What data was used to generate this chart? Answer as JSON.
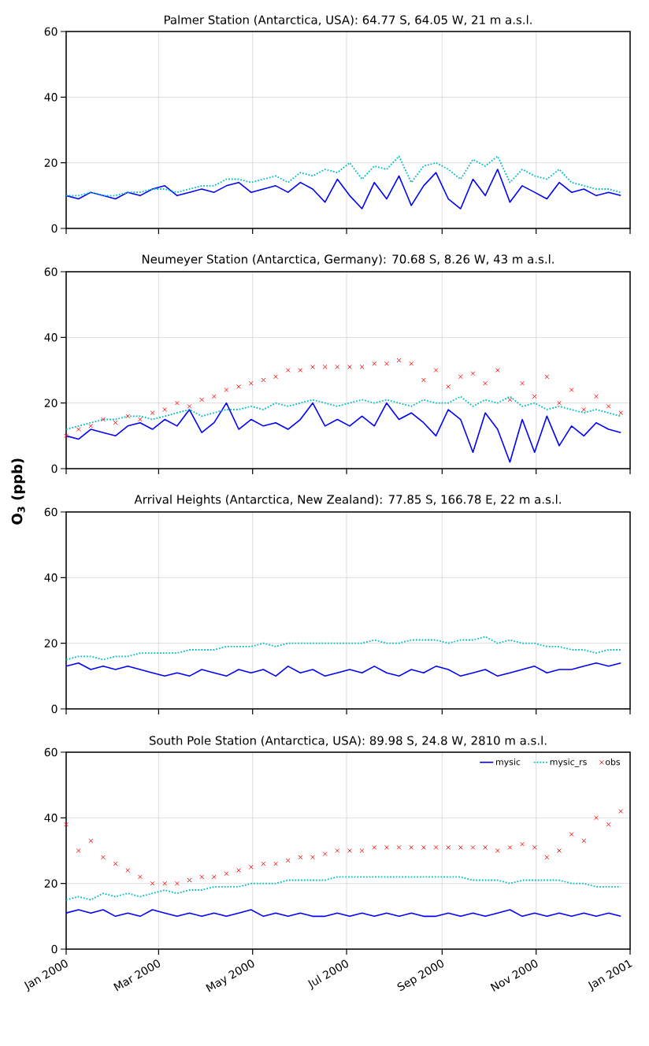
{
  "chart_data": [
    {
      "type": "line",
      "title": "Palmer Station (Antarctica, USA): 64.77 S, 64.05 W, 21 m a.s.l.",
      "x": [
        "2000-01-01",
        "2000-01-09",
        "2000-01-17",
        "2000-01-25",
        "2000-02-02",
        "2000-02-10",
        "2000-02-18",
        "2000-02-26",
        "2000-03-05",
        "2000-03-13",
        "2000-03-21",
        "2000-03-29",
        "2000-04-06",
        "2000-04-14",
        "2000-04-22",
        "2000-04-30",
        "2000-05-08",
        "2000-05-16",
        "2000-05-24",
        "2000-06-01",
        "2000-06-09",
        "2000-06-17",
        "2000-06-25",
        "2000-07-03",
        "2000-07-11",
        "2000-07-19",
        "2000-07-27",
        "2000-08-04",
        "2000-08-12",
        "2000-08-20",
        "2000-08-28",
        "2000-09-05",
        "2000-09-13",
        "2000-09-21",
        "2000-09-29",
        "2000-10-07",
        "2000-10-15",
        "2000-10-23",
        "2000-10-31",
        "2000-11-08",
        "2000-11-16",
        "2000-11-24",
        "2000-12-02",
        "2000-12-10",
        "2000-12-18",
        "2000-12-26"
      ],
      "series": [
        {
          "color": "#0000ff",
          "line_style": "solid",
          "marker": "none",
          "values": [
            10,
            9,
            11,
            10,
            9,
            11,
            10,
            12,
            13,
            10,
            11,
            12,
            11,
            13,
            14,
            11,
            12,
            13,
            11,
            14,
            12,
            8,
            15,
            10,
            6,
            14,
            9,
            16,
            7,
            13,
            17,
            9,
            6,
            15,
            10,
            18,
            8,
            13,
            11,
            9,
            14,
            11,
            12,
            10,
            11,
            10
          ]
        },
        {
          "color": "#00bfbf",
          "line_style": "dotted",
          "marker": "none",
          "values": [
            10,
            10,
            11,
            10,
            10,
            11,
            11,
            12,
            12,
            11,
            12,
            13,
            13,
            15,
            15,
            14,
            15,
            16,
            14,
            17,
            16,
            18,
            17,
            20,
            15,
            19,
            18,
            22,
            14,
            19,
            20,
            18,
            15,
            21,
            19,
            22,
            14,
            18,
            16,
            15,
            18,
            14,
            13,
            12,
            12,
            11
          ]
        }
      ],
      "xlim": [
        "2000-01-01",
        "2001-01-01"
      ],
      "ylim": [
        0,
        60
      ],
      "yticks": [
        0,
        20,
        40,
        60
      ],
      "xticks": [
        {
          "value": "2000-01-01",
          "label": null
        },
        {
          "value": "2000-03-01",
          "label": null
        },
        {
          "value": "2000-05-01",
          "label": null
        },
        {
          "value": "2000-07-01",
          "label": null
        },
        {
          "value": "2000-09-01",
          "label": null
        },
        {
          "value": "2000-11-01",
          "label": null
        },
        {
          "value": "2001-01-01",
          "label": null
        }
      ],
      "grid": true,
      "tick_labels": "y"
    },
    {
      "type": "line",
      "title": "Neumeyer Station (Antarctica, Germany): 70.68 S, 8.26 W, 43 m a.s.l.",
      "ylabel": "O$_{3}$ (ppb)",
      "x": [
        "2000-01-01",
        "2000-01-09",
        "2000-01-17",
        "2000-01-25",
        "2000-02-02",
        "2000-02-10",
        "2000-02-18",
        "2000-02-26",
        "2000-03-05",
        "2000-03-13",
        "2000-03-21",
        "2000-03-29",
        "2000-04-06",
        "2000-04-14",
        "2000-04-22",
        "2000-04-30",
        "2000-05-08",
        "2000-05-16",
        "2000-05-24",
        "2000-06-01",
        "2000-06-09",
        "2000-06-17",
        "2000-06-25",
        "2000-07-03",
        "2000-07-11",
        "2000-07-19",
        "2000-07-27",
        "2000-08-04",
        "2000-08-12",
        "2000-08-20",
        "2000-08-28",
        "2000-09-05",
        "2000-09-13",
        "2000-09-21",
        "2000-09-29",
        "2000-10-07",
        "2000-10-15",
        "2000-10-23",
        "2000-10-31",
        "2000-11-08",
        "2000-11-16",
        "2000-11-24",
        "2000-12-02",
        "2000-12-10",
        "2000-12-18",
        "2000-12-26"
      ],
      "series": [
        {
          "color": "#0000ff",
          "line_style": "solid",
          "marker": "none",
          "values": [
            10,
            9,
            12,
            11,
            10,
            13,
            14,
            12,
            15,
            13,
            18,
            11,
            14,
            20,
            12,
            15,
            13,
            14,
            12,
            15,
            20,
            13,
            15,
            13,
            16,
            13,
            20,
            15,
            17,
            14,
            10,
            18,
            15,
            5,
            17,
            12,
            2,
            15,
            5,
            16,
            7,
            13,
            10,
            14,
            12,
            11
          ]
        },
        {
          "color": "#00bfbf",
          "line_style": "dotted",
          "marker": "none",
          "values": [
            12,
            13,
            14,
            15,
            15,
            16,
            16,
            15,
            16,
            17,
            18,
            16,
            17,
            18,
            18,
            19,
            18,
            20,
            19,
            20,
            21,
            20,
            19,
            20,
            21,
            20,
            21,
            20,
            19,
            21,
            20,
            20,
            22,
            19,
            21,
            20,
            22,
            19,
            20,
            18,
            19,
            18,
            17,
            18,
            17,
            16
          ]
        },
        {
          "type": "scatter",
          "color": "#ff0000",
          "marker": "cross",
          "values": [
            10,
            12,
            13,
            15,
            14,
            16,
            15,
            17,
            18,
            20,
            19,
            21,
            22,
            24,
            25,
            26,
            27,
            28,
            30,
            30,
            31,
            31,
            31,
            31,
            31,
            32,
            32,
            33,
            32,
            27,
            30,
            25,
            28,
            29,
            26,
            30,
            21,
            26,
            22,
            28,
            20,
            24,
            18,
            22,
            19,
            17
          ]
        }
      ],
      "xlim": [
        "2000-01-01",
        "2001-01-01"
      ],
      "ylim": [
        0,
        60
      ],
      "yticks": [
        0,
        20,
        40,
        60
      ],
      "xticks": [
        {
          "value": "2000-01-01",
          "label": null
        },
        {
          "value": "2000-03-01",
          "label": null
        },
        {
          "value": "2000-05-01",
          "label": null
        },
        {
          "value": "2000-07-01",
          "label": null
        },
        {
          "value": "2000-09-01",
          "label": null
        },
        {
          "value": "2000-11-01",
          "label": null
        },
        {
          "value": "2001-01-01",
          "label": null
        }
      ],
      "grid": true,
      "tick_labels": "y"
    },
    {
      "type": "line",
      "title": "Arrival Heights (Antarctica, New Zealand): 77.85 S, 166.78 E, 22 m a.s.l.",
      "x": [
        "2000-01-01",
        "2000-01-09",
        "2000-01-17",
        "2000-01-25",
        "2000-02-02",
        "2000-02-10",
        "2000-02-18",
        "2000-02-26",
        "2000-03-05",
        "2000-03-13",
        "2000-03-21",
        "2000-03-29",
        "2000-04-06",
        "2000-04-14",
        "2000-04-22",
        "2000-04-30",
        "2000-05-08",
        "2000-05-16",
        "2000-05-24",
        "2000-06-01",
        "2000-06-09",
        "2000-06-17",
        "2000-06-25",
        "2000-07-03",
        "2000-07-11",
        "2000-07-19",
        "2000-07-27",
        "2000-08-04",
        "2000-08-12",
        "2000-08-20",
        "2000-08-28",
        "2000-09-05",
        "2000-09-13",
        "2000-09-21",
        "2000-09-29",
        "2000-10-07",
        "2000-10-15",
        "2000-10-23",
        "2000-10-31",
        "2000-11-08",
        "2000-11-16",
        "2000-11-24",
        "2000-12-02",
        "2000-12-10",
        "2000-12-18",
        "2000-12-26"
      ],
      "series": [
        {
          "color": "#0000ff",
          "line_style": "solid",
          "marker": "none",
          "values": [
            13,
            14,
            12,
            13,
            12,
            13,
            12,
            11,
            10,
            11,
            10,
            12,
            11,
            10,
            12,
            11,
            12,
            10,
            13,
            11,
            12,
            10,
            11,
            12,
            11,
            13,
            11,
            10,
            12,
            11,
            13,
            12,
            10,
            11,
            12,
            10,
            11,
            12,
            13,
            11,
            12,
            12,
            13,
            14,
            13,
            14
          ]
        },
        {
          "color": "#00bfbf",
          "line_style": "dotted",
          "marker": "none",
          "values": [
            15,
            16,
            16,
            15,
            16,
            16,
            17,
            17,
            17,
            17,
            18,
            18,
            18,
            19,
            19,
            19,
            20,
            19,
            20,
            20,
            20,
            20,
            20,
            20,
            20,
            21,
            20,
            20,
            21,
            21,
            21,
            20,
            21,
            21,
            22,
            20,
            21,
            20,
            20,
            19,
            19,
            18,
            18,
            17,
            18,
            18
          ]
        }
      ],
      "xlim": [
        "2000-01-01",
        "2001-01-01"
      ],
      "ylim": [
        0,
        60
      ],
      "yticks": [
        0,
        20,
        40,
        60
      ],
      "xticks": [
        {
          "value": "2000-01-01",
          "label": null
        },
        {
          "value": "2000-03-01",
          "label": null
        },
        {
          "value": "2000-05-01",
          "label": null
        },
        {
          "value": "2000-07-01",
          "label": null
        },
        {
          "value": "2000-09-01",
          "label": null
        },
        {
          "value": "2000-11-01",
          "label": null
        },
        {
          "value": "2001-01-01",
          "label": null
        }
      ],
      "grid": true,
      "tick_labels": "y"
    },
    {
      "type": "line",
      "title": "South Pole Station (Antarctica, USA): 89.98 S, 24.8 W, 2810 m a.s.l.",
      "x": [
        "2000-01-01",
        "2000-01-09",
        "2000-01-17",
        "2000-01-25",
        "2000-02-02",
        "2000-02-10",
        "2000-02-18",
        "2000-02-26",
        "2000-03-05",
        "2000-03-13",
        "2000-03-21",
        "2000-03-29",
        "2000-04-06",
        "2000-04-14",
        "2000-04-22",
        "2000-04-30",
        "2000-05-08",
        "2000-05-16",
        "2000-05-24",
        "2000-06-01",
        "2000-06-09",
        "2000-06-17",
        "2000-06-25",
        "2000-07-03",
        "2000-07-11",
        "2000-07-19",
        "2000-07-27",
        "2000-08-04",
        "2000-08-12",
        "2000-08-20",
        "2000-08-28",
        "2000-09-05",
        "2000-09-13",
        "2000-09-21",
        "2000-09-29",
        "2000-10-07",
        "2000-10-15",
        "2000-10-23",
        "2000-10-31",
        "2000-11-08",
        "2000-11-16",
        "2000-11-24",
        "2000-12-02",
        "2000-12-10",
        "2000-12-18",
        "2000-12-26"
      ],
      "series": [
        {
          "name": "mysic",
          "color": "#0000ff",
          "line_style": "solid",
          "marker": "none",
          "values": [
            11,
            12,
            11,
            12,
            10,
            11,
            10,
            12,
            11,
            10,
            11,
            10,
            11,
            10,
            11,
            12,
            10,
            11,
            10,
            11,
            10,
            10,
            11,
            10,
            11,
            10,
            11,
            10,
            11,
            10,
            10,
            11,
            10,
            11,
            10,
            11,
            12,
            10,
            11,
            10,
            11,
            10,
            11,
            10,
            11,
            10
          ]
        },
        {
          "name": "mysic_rs",
          "color": "#00bfbf",
          "line_style": "dotted",
          "marker": "none",
          "values": [
            15,
            16,
            15,
            17,
            16,
            17,
            16,
            17,
            18,
            17,
            18,
            18,
            19,
            19,
            19,
            20,
            20,
            20,
            21,
            21,
            21,
            21,
            22,
            22,
            22,
            22,
            22,
            22,
            22,
            22,
            22,
            22,
            22,
            21,
            21,
            21,
            20,
            21,
            21,
            21,
            21,
            20,
            20,
            19,
            19,
            19
          ]
        },
        {
          "name": "obs",
          "type": "scatter",
          "color": "#ff0000",
          "marker": "cross",
          "values": [
            38,
            30,
            33,
            28,
            26,
            24,
            22,
            20,
            20,
            20,
            21,
            22,
            22,
            23,
            24,
            25,
            26,
            26,
            27,
            28,
            28,
            29,
            30,
            30,
            30,
            31,
            31,
            31,
            31,
            31,
            31,
            31,
            31,
            31,
            31,
            30,
            31,
            32,
            31,
            28,
            30,
            35,
            33,
            40,
            38,
            42
          ]
        }
      ],
      "xlim": [
        "2000-01-01",
        "2001-01-01"
      ],
      "ylim": [
        0,
        60
      ],
      "yticks": [
        0,
        20,
        40,
        60
      ],
      "xticks": [
        {
          "value": "2000-01-01",
          "label": "Jan 2000"
        },
        {
          "value": "2000-03-01",
          "label": "Mar 2000"
        },
        {
          "value": "2000-05-01",
          "label": "May 2000"
        },
        {
          "value": "2000-07-01",
          "label": "Jul 2000"
        },
        {
          "value": "2000-09-01",
          "label": "Sep 2000"
        },
        {
          "value": "2000-11-01",
          "label": "Nov 2000"
        },
        {
          "value": "2001-01-01",
          "label": "Jan 2001"
        }
      ],
      "grid": true,
      "legend": "top right"
    }
  ]
}
